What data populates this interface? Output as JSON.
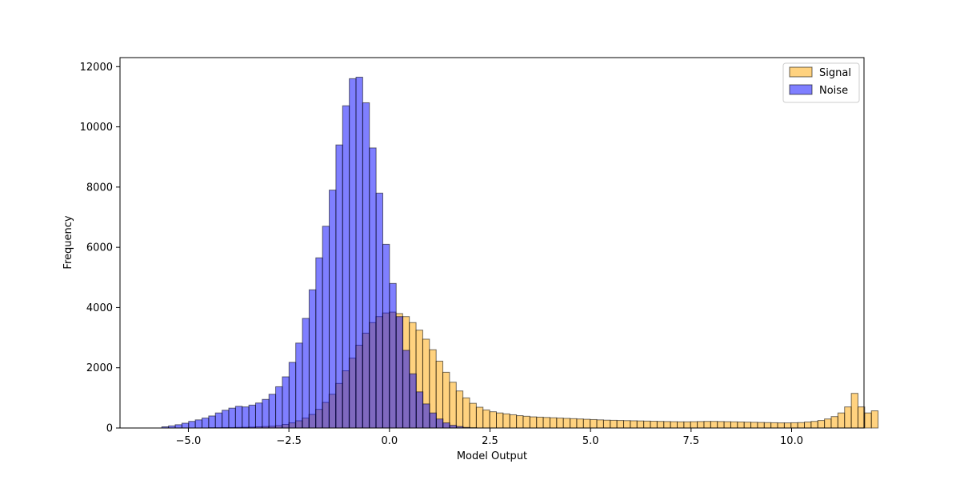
{
  "chart_data": {
    "type": "bar",
    "subtype": "overlaid-histogram",
    "xlabel": "Model Output",
    "ylabel": "Frequency",
    "xlim": [
      -6.7,
      11.8
    ],
    "ylim": [
      0,
      12300
    ],
    "xticks": [
      -5.0,
      -2.5,
      0.0,
      2.5,
      5.0,
      7.5,
      10.0
    ],
    "xtick_labels": [
      "−5.0",
      "−2.5",
      "0.0",
      "2.5",
      "5.0",
      "7.5",
      "10.0"
    ],
    "yticks": [
      0,
      2000,
      4000,
      6000,
      8000,
      10000,
      12000
    ],
    "ytick_labels": [
      "0",
      "2000",
      "4000",
      "6000",
      "8000",
      "10000",
      "12000"
    ],
    "legend_position": "top-right",
    "grid": false,
    "series": [
      {
        "name": "Signal",
        "color": "#ffa500",
        "alpha": 0.5,
        "bin_start": -4.5,
        "bin_width": 0.1665,
        "values": [
          10,
          10,
          15,
          15,
          20,
          25,
          30,
          40,
          50,
          60,
          80,
          120,
          170,
          240,
          330,
          450,
          620,
          850,
          1120,
          1480,
          1900,
          2320,
          2750,
          3150,
          3500,
          3700,
          3820,
          3850,
          3800,
          3700,
          3500,
          3250,
          2950,
          2600,
          2220,
          1850,
          1520,
          1230,
          1000,
          820,
          690,
          600,
          540,
          500,
          470,
          440,
          410,
          390,
          370,
          360,
          350,
          340,
          330,
          320,
          310,
          300,
          290,
          280,
          270,
          260,
          255,
          250,
          245,
          240,
          235,
          230,
          225,
          220,
          215,
          210,
          205,
          205,
          210,
          215,
          220,
          220,
          215,
          210,
          205,
          200,
          195,
          190,
          185,
          180,
          175,
          170,
          170,
          175,
          180,
          200,
          220,
          250,
          300,
          380,
          500,
          700,
          1150,
          700,
          500,
          570
        ]
      },
      {
        "name": "Noise",
        "color": "#0000ff",
        "alpha": 0.5,
        "bin_start": -5.66,
        "bin_width": 0.1665,
        "values": [
          40,
          70,
          110,
          160,
          220,
          270,
          330,
          400,
          500,
          590,
          660,
          720,
          700,
          760,
          830,
          950,
          1120,
          1370,
          1700,
          2180,
          2820,
          3640,
          4590,
          5650,
          6700,
          7900,
          9400,
          10700,
          11600,
          11650,
          10800,
          9300,
          7800,
          6100,
          4800,
          3700,
          2580,
          1800,
          1200,
          800,
          500,
          300,
          170,
          90,
          50,
          20,
          10
        ]
      }
    ]
  }
}
